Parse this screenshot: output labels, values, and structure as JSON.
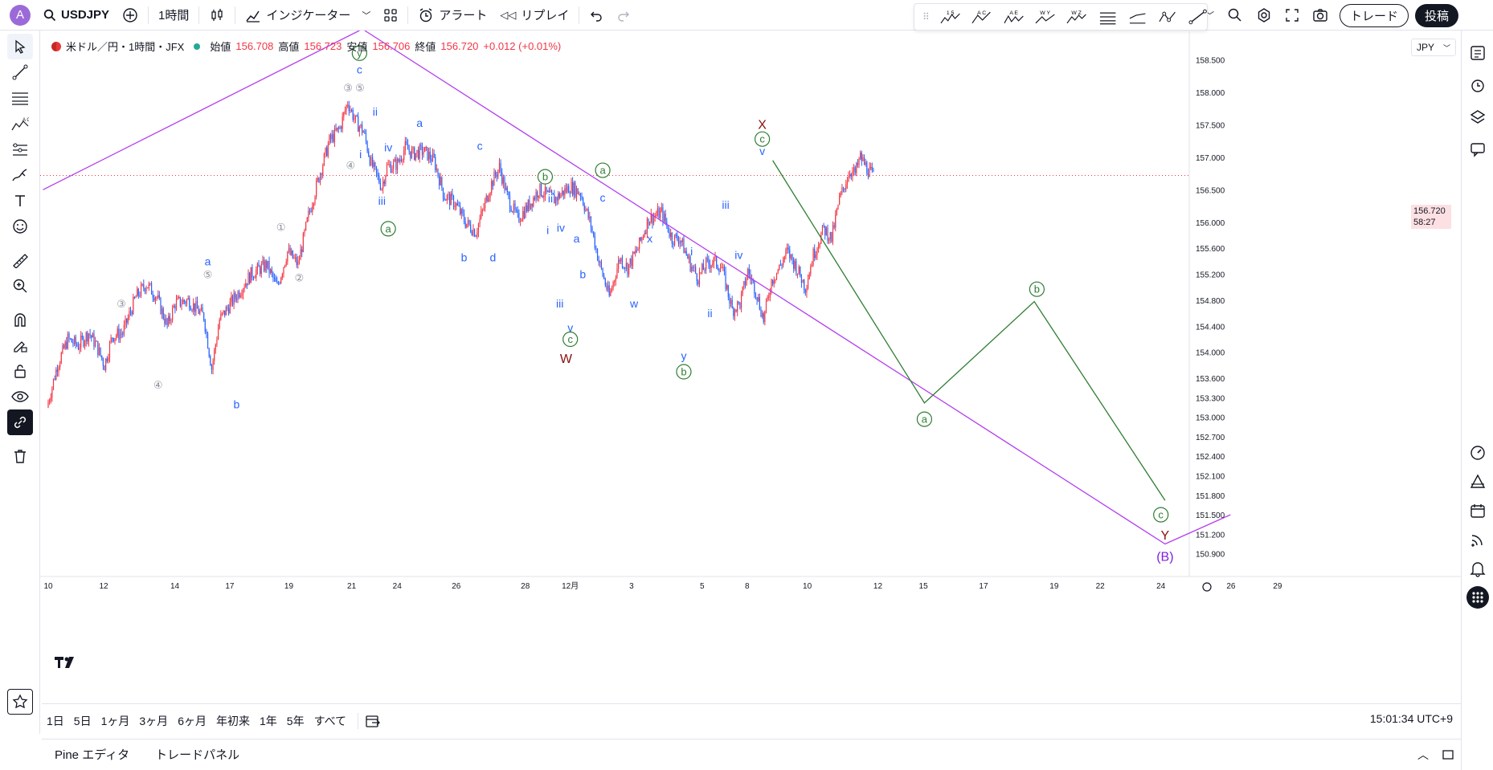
{
  "topbar": {
    "avatar_letter": "A",
    "symbol": "USDJPY",
    "interval": "1時間",
    "indicators": "インジケーター",
    "alert": "アラート",
    "replay": "リプレイ",
    "trade": "トレード",
    "post": "投稿"
  },
  "legend": {
    "title": "米ドル／円・1時間・JFX",
    "open_label": "始値",
    "open": "156.708",
    "high_label": "高値",
    "high": "156.723",
    "low_label": "安値",
    "low": "156.706",
    "close_label": "終値",
    "close": "156.720",
    "change": "+0.012 (+0.01%)"
  },
  "drawbar": {
    "tools": [
      "1 5",
      "A C",
      "A E",
      "W Y",
      "W Z"
    ]
  },
  "price_axis": {
    "currency": "JPY",
    "current_price": "156.720",
    "countdown": "58:27"
  },
  "bottom": {
    "ranges": [
      "1日",
      "5日",
      "1ヶ月",
      "3ヶ月",
      "6ヶ月",
      "年初来",
      "1年",
      "5年",
      "すべて"
    ],
    "clock": "15:01:34 UTC+9",
    "tabs": [
      "Pine エディタ",
      "トレードパネル"
    ]
  },
  "colors": {
    "up": "#f23645",
    "down": "#2962ff",
    "wave_green": "#2e7d32",
    "projection": "#2e7d32",
    "trendline": "#b43ef0",
    "label_blue": "#2962ff",
    "label_dark": "#880e0e"
  },
  "chart_data": {
    "type": "candlestick",
    "title": "米ドル／円・1時間・JFX",
    "ylim": [
      150.55,
      158.95
    ],
    "y_ticks": [
      158.5,
      158.0,
      157.5,
      157.0,
      156.5,
      156.0,
      155.6,
      155.2,
      154.8,
      154.4,
      154.0,
      153.6,
      153.3,
      153.0,
      152.7,
      152.4,
      152.1,
      151.8,
      151.5,
      151.2,
      150.9
    ],
    "y_tick_labels": [
      "158.500",
      "158.000",
      "157.500",
      "157.000",
      "156.500",
      "156.000",
      "155.600",
      "155.200",
      "154.800",
      "154.400",
      "154.000",
      "153.600",
      "153.300",
      "153.000",
      "152.700",
      "152.400",
      "152.100",
      "151.800",
      "151.500",
      "151.200",
      "150.900"
    ],
    "x_ticks": [
      {
        "label": "10",
        "t": 0
      },
      {
        "label": "12",
        "t": 1.06
      },
      {
        "label": "14",
        "t": 2.42
      },
      {
        "label": "17",
        "t": 3.47
      },
      {
        "label": "19",
        "t": 4.6
      },
      {
        "label": "21",
        "t": 5.8
      },
      {
        "label": "24",
        "t": 6.67
      },
      {
        "label": "26",
        "t": 7.8
      },
      {
        "label": "28",
        "t": 9.12
      },
      {
        "label": "12月",
        "t": 9.98
      },
      {
        "label": "3",
        "t": 11.15
      },
      {
        "label": "5",
        "t": 12.5
      },
      {
        "label": "8",
        "t": 13.36
      },
      {
        "label": "10",
        "t": 14.51
      },
      {
        "label": "12",
        "t": 15.86
      },
      {
        "label": "15",
        "t": 16.73
      },
      {
        "label": "17",
        "t": 17.88
      },
      {
        "label": "19",
        "t": 19.23
      },
      {
        "label": "22",
        "t": 20.11
      },
      {
        "label": "24",
        "t": 21.27
      },
      {
        "label": "26",
        "t": 22.61
      },
      {
        "label": "29",
        "t": 23.5
      }
    ],
    "price_path": [
      [
        0.0,
        153.15
      ],
      [
        0.2,
        153.8
      ],
      [
        0.4,
        154.2
      ],
      [
        0.6,
        154.1
      ],
      [
        0.8,
        154.3
      ],
      [
        0.95,
        154.1
      ],
      [
        1.1,
        153.8
      ],
      [
        1.25,
        154.25
      ],
      [
        1.45,
        154.3
      ],
      [
        1.7,
        154.85
      ],
      [
        1.9,
        155.05
      ],
      [
        2.1,
        154.85
      ],
      [
        2.3,
        154.4
      ],
      [
        2.45,
        154.75
      ],
      [
        2.7,
        154.8
      ],
      [
        3.0,
        154.55
      ],
      [
        3.15,
        153.75
      ],
      [
        3.3,
        154.5
      ],
      [
        3.6,
        154.85
      ],
      [
        3.9,
        155.2
      ],
      [
        4.2,
        155.35
      ],
      [
        4.4,
        155.0
      ],
      [
        4.6,
        155.55
      ],
      [
        4.8,
        155.35
      ],
      [
        5.0,
        156.1
      ],
      [
        5.2,
        156.7
      ],
      [
        5.4,
        157.25
      ],
      [
        5.6,
        157.45
      ],
      [
        5.75,
        157.85
      ],
      [
        5.9,
        157.55
      ],
      [
        6.05,
        157.4
      ],
      [
        6.2,
        156.9
      ],
      [
        6.4,
        156.55
      ],
      [
        6.5,
        156.85
      ],
      [
        6.7,
        156.9
      ],
      [
        6.85,
        157.15
      ],
      [
        7.0,
        157.05
      ],
      [
        7.2,
        157.1
      ],
      [
        7.4,
        156.95
      ],
      [
        7.6,
        156.4
      ],
      [
        7.8,
        156.3
      ],
      [
        8.0,
        156.0
      ],
      [
        8.2,
        155.85
      ],
      [
        8.5,
        156.6
      ],
      [
        8.65,
        156.85
      ],
      [
        8.8,
        156.4
      ],
      [
        9.0,
        156.05
      ],
      [
        9.2,
        156.25
      ],
      [
        9.4,
        156.5
      ],
      [
        9.7,
        156.35
      ],
      [
        10.0,
        156.55
      ],
      [
        10.2,
        156.45
      ],
      [
        10.4,
        155.95
      ],
      [
        10.55,
        155.4
      ],
      [
        10.75,
        154.85
      ],
      [
        10.95,
        155.45
      ],
      [
        11.1,
        155.3
      ],
      [
        11.3,
        155.6
      ],
      [
        11.5,
        156.05
      ],
      [
        11.75,
        156.15
      ],
      [
        11.95,
        155.75
      ],
      [
        12.1,
        155.75
      ],
      [
        12.3,
        155.35
      ],
      [
        12.45,
        155.15
      ],
      [
        12.6,
        155.35
      ],
      [
        12.75,
        155.4
      ],
      [
        12.9,
        155.3
      ],
      [
        13.1,
        154.65
      ],
      [
        13.25,
        154.75
      ],
      [
        13.4,
        155.25
      ],
      [
        13.55,
        154.95
      ],
      [
        13.7,
        154.5
      ],
      [
        13.85,
        155.1
      ],
      [
        14.0,
        155.3
      ],
      [
        14.15,
        155.55
      ],
      [
        14.3,
        155.35
      ],
      [
        14.5,
        155.0
      ],
      [
        14.65,
        155.5
      ],
      [
        14.85,
        155.9
      ],
      [
        15.0,
        155.75
      ],
      [
        15.15,
        156.35
      ],
      [
        15.35,
        156.8
      ],
      [
        15.45,
        156.75
      ],
      [
        15.55,
        157.0
      ],
      [
        15.7,
        156.8
      ],
      [
        15.8,
        156.7
      ]
    ],
    "wave_labels": [
      {
        "text": "①",
        "t": 4.45,
        "price": 155.93,
        "style": "gray"
      },
      {
        "text": "②",
        "t": 4.8,
        "price": 155.15,
        "style": "gray"
      },
      {
        "text": "③",
        "t": 5.73,
        "price": 158.07,
        "style": "gray"
      },
      {
        "text": "⑤",
        "t": 5.96,
        "price": 158.07,
        "style": "gray"
      },
      {
        "text": "④",
        "t": 5.78,
        "price": 156.88,
        "style": "gray"
      },
      {
        "text": "③",
        "t": 1.4,
        "price": 154.75,
        "style": "gray"
      },
      {
        "text": "④",
        "t": 2.1,
        "price": 153.5,
        "style": "gray"
      },
      {
        "text": "⑤",
        "t": 3.05,
        "price": 155.2,
        "style": "gray"
      },
      {
        "text": "a",
        "t": 3.05,
        "price": 155.4,
        "style": "blue"
      },
      {
        "text": "b",
        "t": 3.6,
        "price": 153.2,
        "style": "blue"
      },
      {
        "text": "y",
        "t": 5.95,
        "price": 158.6,
        "style": "green-circle"
      },
      {
        "text": "c",
        "t": 5.95,
        "price": 158.35,
        "style": "blue"
      },
      {
        "text": "ii",
        "t": 6.25,
        "price": 157.7,
        "style": "blue"
      },
      {
        "text": "i",
        "t": 5.97,
        "price": 157.05,
        "style": "blue"
      },
      {
        "text": "iv",
        "t": 6.5,
        "price": 157.15,
        "style": "blue"
      },
      {
        "text": "iii",
        "t": 6.38,
        "price": 156.33,
        "style": "blue"
      },
      {
        "text": "a",
        "t": 6.5,
        "price": 155.9,
        "style": "green-circle"
      },
      {
        "text": "a",
        "t": 7.1,
        "price": 157.53,
        "style": "blue"
      },
      {
        "text": "c",
        "t": 8.25,
        "price": 157.18,
        "style": "blue"
      },
      {
        "text": "b",
        "t": 7.95,
        "price": 155.46,
        "style": "blue"
      },
      {
        "text": "d",
        "t": 8.5,
        "price": 155.46,
        "style": "blue"
      },
      {
        "text": "b",
        "t": 9.5,
        "price": 156.7,
        "style": "green-circle"
      },
      {
        "text": "ii",
        "t": 9.6,
        "price": 156.37,
        "style": "blue"
      },
      {
        "text": "i",
        "t": 9.55,
        "price": 155.88,
        "style": "blue"
      },
      {
        "text": "iv",
        "t": 9.8,
        "price": 155.92,
        "style": "blue"
      },
      {
        "text": "a",
        "t": 10.1,
        "price": 155.75,
        "style": "blue"
      },
      {
        "text": "b",
        "t": 10.22,
        "price": 155.2,
        "style": "blue"
      },
      {
        "text": "iii",
        "t": 9.78,
        "price": 154.75,
        "style": "blue"
      },
      {
        "text": "v",
        "t": 9.98,
        "price": 154.38,
        "style": "blue"
      },
      {
        "text": "c",
        "t": 9.98,
        "price": 154.2,
        "style": "green-circle"
      },
      {
        "text": "W",
        "t": 9.9,
        "price": 153.9,
        "style": "darkred"
      },
      {
        "text": "a",
        "t": 10.6,
        "price": 156.8,
        "style": "green-circle"
      },
      {
        "text": "c",
        "t": 10.6,
        "price": 156.38,
        "style": "blue"
      },
      {
        "text": "x",
        "t": 11.5,
        "price": 155.75,
        "style": "blue"
      },
      {
        "text": "w",
        "t": 11.2,
        "price": 154.75,
        "style": "blue"
      },
      {
        "text": "i",
        "t": 12.3,
        "price": 155.55,
        "style": "blue"
      },
      {
        "text": "ii",
        "t": 12.65,
        "price": 154.6,
        "style": "blue"
      },
      {
        "text": "iii",
        "t": 12.95,
        "price": 156.27,
        "style": "blue"
      },
      {
        "text": "iv",
        "t": 13.2,
        "price": 155.5,
        "style": "blue"
      },
      {
        "text": "y",
        "t": 12.15,
        "price": 153.95,
        "style": "blue"
      },
      {
        "text": "b",
        "t": 12.15,
        "price": 153.7,
        "style": "green-circle"
      },
      {
        "text": "v",
        "t": 13.65,
        "price": 157.1,
        "style": "blue"
      },
      {
        "text": "c",
        "t": 13.65,
        "price": 157.28,
        "style": "green-circle"
      },
      {
        "text": "X",
        "t": 13.65,
        "price": 157.5,
        "style": "darkred"
      },
      {
        "text": "a",
        "t": 16.75,
        "price": 152.97,
        "style": "green-circle"
      },
      {
        "text": "b",
        "t": 18.9,
        "price": 154.97,
        "style": "green-circle"
      },
      {
        "text": "c",
        "t": 21.27,
        "price": 151.5,
        "style": "green-circle"
      },
      {
        "text": "Y",
        "t": 21.35,
        "price": 151.18,
        "style": "darkred"
      },
      {
        "text": "(B)",
        "t": 21.35,
        "price": 150.85,
        "style": "purple"
      }
    ],
    "projection": [
      [
        13.85,
        156.95
      ],
      [
        16.75,
        153.22
      ],
      [
        18.85,
        154.78
      ],
      [
        21.35,
        151.72
      ]
    ],
    "trendlines": [
      [
        [
          -0.1,
          156.5
        ],
        [
          5.95,
          158.95
        ]
      ],
      [
        [
          6.05,
          158.95
        ],
        [
          21.35,
          151.05
        ],
        [
          22.6,
          151.5
        ]
      ]
    ]
  }
}
